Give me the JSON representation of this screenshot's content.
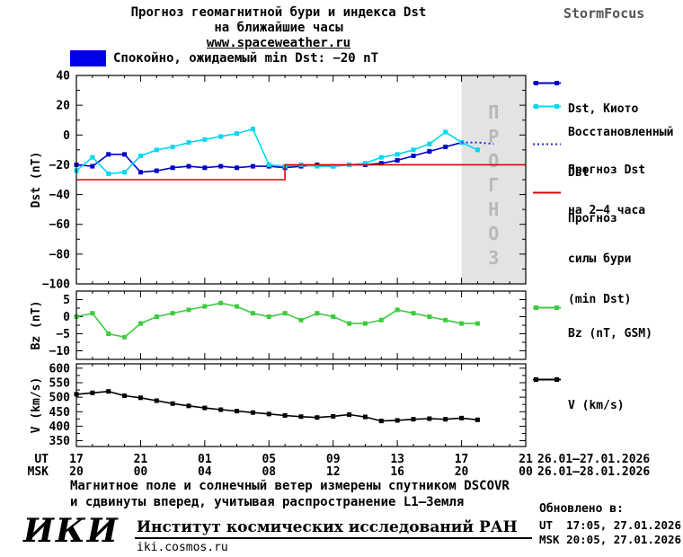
{
  "header": {
    "title_line1": "Прогноз геомагнитной бури и индекса Dst",
    "title_line2": "на ближайшие часы",
    "website": "www.spaceweather.ru",
    "brand": "StormFocus"
  },
  "status_banner": {
    "color": "#0000ee",
    "text": "Спокойно, ожидаемый min Dst: −20 nT"
  },
  "chart_data": [
    {
      "type": "line",
      "name": "dst-plot",
      "title": "",
      "xlabel": "",
      "ylabel": "Dst (nT)",
      "xlim": [
        0,
        28
      ],
      "ylim": [
        -100,
        40
      ],
      "yticks": [
        40,
        20,
        0,
        -20,
        -40,
        -60,
        -80,
        -100
      ],
      "grid": false,
      "forecast_region": {
        "t_start": 24,
        "t_end": 28,
        "label": "ПРОГНОЗ",
        "fill": "#e3e3e3",
        "text_color": "#b8b8b8"
      },
      "series": [
        {
          "name": "Dst, Киото",
          "color": "#0000cc",
          "marker": "square",
          "points": [
            [
              0,
              -20
            ],
            [
              1,
              -21
            ],
            [
              2,
              -13
            ],
            [
              3,
              -13
            ],
            [
              4,
              -25
            ],
            [
              5,
              -24
            ],
            [
              6,
              -22
            ],
            [
              7,
              -21
            ],
            [
              8,
              -22
            ],
            [
              9,
              -21
            ],
            [
              10,
              -22
            ],
            [
              11,
              -21
            ],
            [
              12,
              -21
            ],
            [
              13,
              -22
            ],
            [
              14,
              -21
            ],
            [
              15,
              -20
            ],
            [
              16,
              -21
            ],
            [
              17,
              -20
            ],
            [
              18,
              -20
            ],
            [
              19,
              -19
            ],
            [
              20,
              -17
            ],
            [
              21,
              -14
            ],
            [
              22,
              -11
            ],
            [
              23,
              -8
            ],
            [
              24,
              -5
            ]
          ]
        },
        {
          "name": "Восстановленный Dst",
          "color": "#00d8ee",
          "marker": "square",
          "points": [
            [
              0,
              -24
            ],
            [
              1,
              -15
            ],
            [
              2,
              -26
            ],
            [
              3,
              -25
            ],
            [
              4,
              -14
            ],
            [
              5,
              -10
            ],
            [
              6,
              -8
            ],
            [
              7,
              -5
            ],
            [
              8,
              -3
            ],
            [
              9,
              -1
            ],
            [
              10,
              1
            ],
            [
              11,
              4
            ],
            [
              12,
              -20
            ],
            [
              13,
              -21
            ],
            [
              14,
              -20
            ],
            [
              15,
              -21
            ],
            [
              16,
              -21
            ],
            [
              17,
              -20
            ],
            [
              18,
              -19
            ],
            [
              19,
              -15
            ],
            [
              20,
              -13
            ],
            [
              21,
              -10
            ],
            [
              22,
              -6
            ],
            [
              23,
              2
            ],
            [
              24,
              -5
            ],
            [
              25,
              -10
            ]
          ]
        },
        {
          "name": "Прогноз Dst на 2–4 часа",
          "color": "#2222ee",
          "dash": "2,3",
          "points": [
            [
              24,
              -5
            ],
            [
              25,
              -5
            ],
            [
              26,
              -6
            ]
          ]
        },
        {
          "name": "Прогноз силы бури (min Dst)",
          "color": "#dd0000",
          "points": [
            [
              0,
              -30
            ],
            [
              13,
              -30
            ],
            [
              13,
              -20
            ],
            [
              28,
              -20
            ]
          ]
        }
      ]
    },
    {
      "type": "line",
      "name": "bz-plot",
      "title": "",
      "xlabel": "",
      "ylabel": "Bz (nT)",
      "xlim": [
        0,
        28
      ],
      "ylim": [
        -12.5,
        7.5
      ],
      "yticks": [
        5,
        0,
        -5,
        -10
      ],
      "grid": false,
      "series": [
        {
          "name": "Bz (nT, GSM)",
          "color": "#3dcc3d",
          "marker": "square",
          "points": [
            [
              0,
              0
            ],
            [
              1,
              1
            ],
            [
              2,
              -5
            ],
            [
              3,
              -6
            ],
            [
              4,
              -2
            ],
            [
              5,
              0
            ],
            [
              6,
              1
            ],
            [
              7,
              2
            ],
            [
              8,
              3
            ],
            [
              9,
              4
            ],
            [
              10,
              3
            ],
            [
              11,
              1
            ],
            [
              12,
              0
            ],
            [
              13,
              1
            ],
            [
              14,
              -1
            ],
            [
              15,
              1
            ],
            [
              16,
              0
            ],
            [
              17,
              -2
            ],
            [
              18,
              -2
            ],
            [
              19,
              -1
            ],
            [
              20,
              2
            ],
            [
              21,
              1
            ],
            [
              22,
              0
            ],
            [
              23,
              -1
            ],
            [
              24,
              -2
            ],
            [
              25,
              -2
            ]
          ]
        }
      ]
    },
    {
      "type": "line",
      "name": "v-plot",
      "title": "",
      "xlabel": "",
      "ylabel": "V (km/s)",
      "xlim": [
        0,
        28
      ],
      "ylim": [
        330,
        615
      ],
      "yticks": [
        600,
        550,
        500,
        450,
        400,
        350
      ],
      "grid": false,
      "series": [
        {
          "name": "V (km/s)",
          "color": "#000000",
          "marker": "square",
          "points": [
            [
              0,
              510
            ],
            [
              1,
              515
            ],
            [
              2,
              520
            ],
            [
              3,
              505
            ],
            [
              4,
              498
            ],
            [
              5,
              488
            ],
            [
              6,
              478
            ],
            [
              7,
              470
            ],
            [
              8,
              463
            ],
            [
              9,
              457
            ],
            [
              10,
              452
            ],
            [
              11,
              447
            ],
            [
              12,
              442
            ],
            [
              13,
              437
            ],
            [
              14,
              433
            ],
            [
              15,
              430
            ],
            [
              16,
              434
            ],
            [
              17,
              440
            ],
            [
              18,
              432
            ],
            [
              19,
              418
            ],
            [
              20,
              420
            ],
            [
              21,
              424
            ],
            [
              22,
              426
            ],
            [
              23,
              424
            ],
            [
              24,
              428
            ],
            [
              25,
              422
            ]
          ]
        }
      ]
    }
  ],
  "xaxis": {
    "ut_label": "UT",
    "msk_label": "MSK",
    "ticks": [
      {
        "t": 0,
        "ut": "17",
        "msk": "20"
      },
      {
        "t": 4,
        "ut": "21",
        "msk": "00"
      },
      {
        "t": 8,
        "ut": "01",
        "msk": "04"
      },
      {
        "t": 12,
        "ut": "05",
        "msk": "08"
      },
      {
        "t": 16,
        "ut": "09",
        "msk": "12"
      },
      {
        "t": 20,
        "ut": "13",
        "msk": "16"
      },
      {
        "t": 24,
        "ut": "17",
        "msk": "20"
      },
      {
        "t": 28,
        "ut": "21",
        "msk": "00"
      }
    ],
    "ut_daterange": "26.01–27.01.2026",
    "msk_daterange": "26.01–28.01.2026"
  },
  "legend": {
    "entries": [
      {
        "lines": [
          "Dst, Киото"
        ],
        "color": "#0000cc",
        "style": "line-markers"
      },
      {
        "lines": [
          "Восстановленный",
          "Dst"
        ],
        "color": "#00d8ee",
        "style": "line-markers"
      },
      {
        "lines": [
          "Прогноз Dst",
          "на 2–4 часа"
        ],
        "color": "#2222ee",
        "style": "dotted"
      },
      {
        "lines": [
          "Прогноз",
          "силы бури",
          "(min Dst)"
        ],
        "color": "#dd0000",
        "style": "line"
      },
      {
        "lines": [
          "Bz (nT, GSM)"
        ],
        "color": "#3dcc3d",
        "style": "line-markers"
      },
      {
        "lines": [
          "V (km/s)"
        ],
        "color": "#000000",
        "style": "line-markers"
      }
    ]
  },
  "footer": {
    "note_line1": "Магнитное поле и солнечный ветер измерены спутником DSCOVR",
    "note_line2": "и сдвинуты вперед, учитывая распространение L1–Земля",
    "updated_label": "Обновлено в:",
    "updated_ut": "UT  17:05, 27.01.2026",
    "updated_msk": "MSK 20:05, 27.01.2026",
    "logo": "ИКИ",
    "institute": "Институт космических исследований РАН",
    "site": "iki.cosmos.ru"
  }
}
